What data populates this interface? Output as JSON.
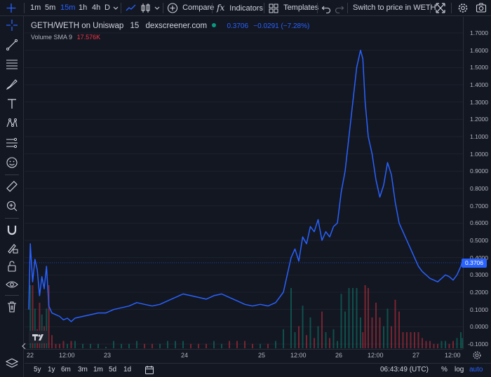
{
  "toolbar": {
    "intervals": [
      "1m",
      "5m",
      "15m",
      "1h",
      "4h",
      "D"
    ],
    "active_interval": "15m",
    "compare_label": "Compare",
    "indicators_label": "Indicators",
    "templates_label": "Templates",
    "switch_label": "Switch to price in WETH"
  },
  "legend": {
    "symbol": "GETH/WETH on Uniswap",
    "interval": "15",
    "source": "dexscreener.com",
    "price": "0.3706",
    "change": "−0.0291 (−7.28%)",
    "volume_label": "Volume SMA 9",
    "volume_value": "17.576K"
  },
  "colors": {
    "background": "#131722",
    "line": "#2962ff",
    "up": "#089981",
    "down": "#f23645",
    "text": "#d1d4dc"
  },
  "y_axis": {
    "ticks": [
      "1.7000",
      "1.6000",
      "1.5000",
      "1.4000",
      "1.3000",
      "1.2000",
      "1.1000",
      "1.0000",
      "0.9000",
      "0.8000",
      "0.7000",
      "0.6000",
      "0.5000",
      "0.4000",
      "0.3000",
      "0.2000",
      "0.1000",
      "0.0000",
      "-0.1000"
    ],
    "last_price_label": "0.3706"
  },
  "x_axis": {
    "ticks": [
      "22",
      "12:00",
      "23",
      "24",
      "25",
      "12:00",
      "26",
      "12:00",
      "27",
      "12:00"
    ]
  },
  "bottom": {
    "ranges": [
      "5y",
      "1y",
      "6m",
      "3m",
      "1m",
      "5d",
      "1d"
    ],
    "time": "06:43:49 (UTC)",
    "percent": "%",
    "log": "log",
    "auto": "auto"
  },
  "chart_data": {
    "type": "line",
    "title": "",
    "xlabel": "",
    "ylabel": "",
    "x_start": "22",
    "x_end": "27 12:00",
    "ylim": [
      -0.12,
      1.75
    ],
    "x_unit": "days from 22 00:00",
    "series": [
      {
        "name": "",
        "points": [
          [
            0.0,
            0.1
          ],
          [
            0.02,
            0.48
          ],
          [
            0.05,
            0.26
          ],
          [
            0.08,
            0.39
          ],
          [
            0.11,
            0.33
          ],
          [
            0.14,
            0.18
          ],
          [
            0.17,
            0.29
          ],
          [
            0.2,
            0.22
          ],
          [
            0.23,
            0.35
          ],
          [
            0.26,
            0.12
          ],
          [
            0.3,
            0.08
          ],
          [
            0.35,
            0.07
          ],
          [
            0.4,
            0.06
          ],
          [
            0.45,
            0.04
          ],
          [
            0.5,
            0.05
          ],
          [
            0.55,
            0.03
          ],
          [
            0.6,
            0.05
          ],
          [
            0.7,
            0.06
          ],
          [
            0.8,
            0.07
          ],
          [
            0.9,
            0.08
          ],
          [
            1.0,
            0.08
          ],
          [
            1.1,
            0.1
          ],
          [
            1.2,
            0.11
          ],
          [
            1.3,
            0.12
          ],
          [
            1.4,
            0.14
          ],
          [
            1.5,
            0.13
          ],
          [
            1.6,
            0.12
          ],
          [
            1.7,
            0.13
          ],
          [
            1.8,
            0.15
          ],
          [
            1.9,
            0.17
          ],
          [
            2.0,
            0.19
          ],
          [
            2.1,
            0.18
          ],
          [
            2.2,
            0.17
          ],
          [
            2.3,
            0.16
          ],
          [
            2.4,
            0.18
          ],
          [
            2.5,
            0.19
          ],
          [
            2.6,
            0.17
          ],
          [
            2.7,
            0.15
          ],
          [
            2.8,
            0.13
          ],
          [
            2.9,
            0.12
          ],
          [
            3.0,
            0.13
          ],
          [
            3.1,
            0.12
          ],
          [
            3.2,
            0.14
          ],
          [
            3.3,
            0.2
          ],
          [
            3.4,
            0.4
          ],
          [
            3.45,
            0.45
          ],
          [
            3.5,
            0.38
          ],
          [
            3.55,
            0.52
          ],
          [
            3.6,
            0.48
          ],
          [
            3.65,
            0.58
          ],
          [
            3.7,
            0.55
          ],
          [
            3.75,
            0.62
          ],
          [
            3.8,
            0.5
          ],
          [
            3.85,
            0.55
          ],
          [
            3.9,
            0.52
          ],
          [
            3.95,
            0.58
          ],
          [
            4.0,
            0.6
          ],
          [
            4.05,
            0.78
          ],
          [
            4.1,
            0.9
          ],
          [
            4.15,
            1.1
          ],
          [
            4.2,
            1.3
          ],
          [
            4.25,
            1.5
          ],
          [
            4.3,
            1.6
          ],
          [
            4.33,
            1.55
          ],
          [
            4.36,
            1.3
          ],
          [
            4.4,
            1.1
          ],
          [
            4.45,
            1.0
          ],
          [
            4.5,
            0.85
          ],
          [
            4.55,
            0.75
          ],
          [
            4.6,
            0.82
          ],
          [
            4.65,
            0.95
          ],
          [
            4.7,
            0.88
          ],
          [
            4.75,
            0.72
          ],
          [
            4.8,
            0.6
          ],
          [
            4.85,
            0.55
          ],
          [
            4.9,
            0.5
          ],
          [
            4.95,
            0.45
          ],
          [
            5.0,
            0.4
          ],
          [
            5.05,
            0.35
          ],
          [
            5.1,
            0.32
          ],
          [
            5.15,
            0.3
          ],
          [
            5.2,
            0.28
          ],
          [
            5.25,
            0.27
          ],
          [
            5.3,
            0.26
          ],
          [
            5.35,
            0.28
          ],
          [
            5.4,
            0.3
          ],
          [
            5.45,
            0.29
          ],
          [
            5.5,
            0.27
          ],
          [
            5.55,
            0.3
          ],
          [
            5.6,
            0.35
          ],
          [
            5.62,
            0.38
          ],
          [
            5.64,
            0.37
          ]
        ]
      }
    ]
  }
}
